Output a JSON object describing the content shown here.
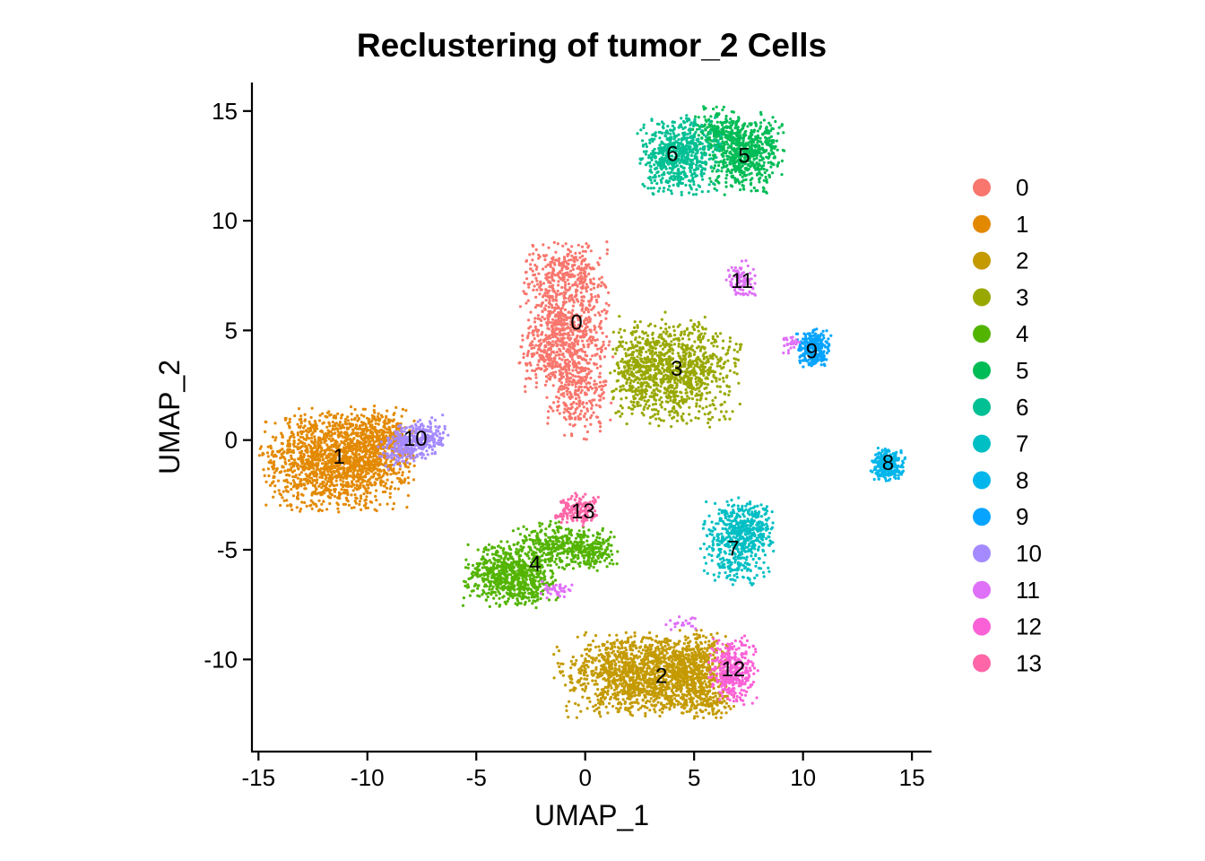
{
  "chart_data": {
    "type": "scatter",
    "title": "Reclustering of tumor_2 Cells",
    "xlabel": "UMAP_1",
    "ylabel": "UMAP_2",
    "xlim": [
      -15.3,
      15.9
    ],
    "ylim": [
      -14.2,
      16.3
    ],
    "x_ticks": [
      -15,
      -10,
      -5,
      0,
      5,
      10,
      15
    ],
    "y_ticks": [
      -10,
      -5,
      0,
      5,
      10,
      15
    ],
    "x_tick_labels": [
      "-15",
      "-10",
      "-5",
      "0",
      "5",
      "10",
      "15"
    ],
    "y_tick_labels": [
      "-10",
      "-5",
      "0",
      "5",
      "10",
      "15"
    ],
    "grid": false,
    "legend_position": "right",
    "series": [
      {
        "name": "0",
        "color": "#F8766D",
        "label_x": -0.4,
        "label_y": 5.4
      },
      {
        "name": "1",
        "color": "#E38900",
        "label_x": -11.3,
        "label_y": -0.7
      },
      {
        "name": "2",
        "color": "#C49A00",
        "label_x": 3.5,
        "label_y": -10.7
      },
      {
        "name": "3",
        "color": "#99A800",
        "label_x": 4.2,
        "label_y": 3.3
      },
      {
        "name": "4",
        "color": "#53B400",
        "label_x": -2.3,
        "label_y": -5.6
      },
      {
        "name": "5",
        "color": "#00BC56",
        "label_x": 7.3,
        "label_y": 13.0
      },
      {
        "name": "6",
        "color": "#00C094",
        "label_x": 4.0,
        "label_y": 13.1
      },
      {
        "name": "7",
        "color": "#00BFC4",
        "label_x": 6.8,
        "label_y": -4.9
      },
      {
        "name": "8",
        "color": "#00B6EB",
        "label_x": 13.9,
        "label_y": -1.0
      },
      {
        "name": "9",
        "color": "#06A4FF",
        "label_x": 10.4,
        "label_y": 4.1
      },
      {
        "name": "10",
        "color": "#A58AFF",
        "label_x": -7.8,
        "label_y": 0.1
      },
      {
        "name": "11",
        "color": "#DF70F8",
        "label_x": 7.2,
        "label_y": 7.3
      },
      {
        "name": "12",
        "color": "#FB61D7",
        "label_x": 6.8,
        "label_y": -10.4
      },
      {
        "name": "13",
        "color": "#FF66A8",
        "label_x": -0.1,
        "label_y": -3.2
      }
    ]
  }
}
